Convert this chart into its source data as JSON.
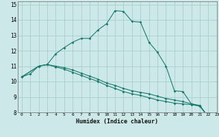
{
  "xlabel": "Humidex (Indice chaleur)",
  "background_color": "#cce8e8",
  "line_color": "#1a7a6e",
  "grid_color": "#a8cccc",
  "xlim": [
    -0.5,
    23
  ],
  "ylim": [
    8,
    15.2
  ],
  "xticks": [
    0,
    1,
    2,
    3,
    4,
    5,
    6,
    7,
    8,
    9,
    10,
    11,
    12,
    13,
    14,
    15,
    16,
    17,
    18,
    19,
    20,
    21,
    22,
    23
  ],
  "yticks": [
    8,
    9,
    10,
    11,
    12,
    13,
    14,
    15
  ],
  "line1_x": [
    0,
    1,
    2,
    3,
    4,
    5,
    6,
    7,
    8,
    9,
    10,
    11,
    12,
    13,
    14,
    15,
    16,
    17,
    18,
    19,
    20,
    21,
    22,
    23
  ],
  "line1_y": [
    10.3,
    10.5,
    11.0,
    11.1,
    11.8,
    12.2,
    12.55,
    12.8,
    12.8,
    13.35,
    13.75,
    14.6,
    14.55,
    13.9,
    13.85,
    12.55,
    11.9,
    11.0,
    9.4,
    9.35,
    8.55,
    8.45,
    7.7,
    7.6
  ],
  "line2_x": [
    0,
    2,
    3,
    4,
    5,
    6,
    7,
    8,
    9,
    10,
    11,
    12,
    13,
    14,
    15,
    16,
    17,
    18,
    19,
    20,
    21,
    22,
    23
  ],
  "line2_y": [
    10.3,
    11.0,
    11.1,
    11.0,
    10.9,
    10.75,
    10.55,
    10.35,
    10.15,
    9.9,
    9.75,
    9.55,
    9.4,
    9.3,
    9.2,
    9.05,
    8.9,
    8.8,
    8.7,
    8.55,
    8.4,
    7.7,
    7.6
  ],
  "line3_x": [
    0,
    2,
    3,
    4,
    5,
    6,
    7,
    8,
    9,
    10,
    11,
    12,
    13,
    14,
    15,
    16,
    17,
    18,
    19,
    20,
    21,
    22,
    23
  ],
  "line3_y": [
    10.3,
    11.0,
    11.1,
    10.95,
    10.8,
    10.6,
    10.4,
    10.2,
    10.0,
    9.75,
    9.55,
    9.35,
    9.2,
    9.1,
    8.95,
    8.8,
    8.7,
    8.6,
    8.55,
    8.5,
    8.4,
    7.7,
    7.6
  ]
}
